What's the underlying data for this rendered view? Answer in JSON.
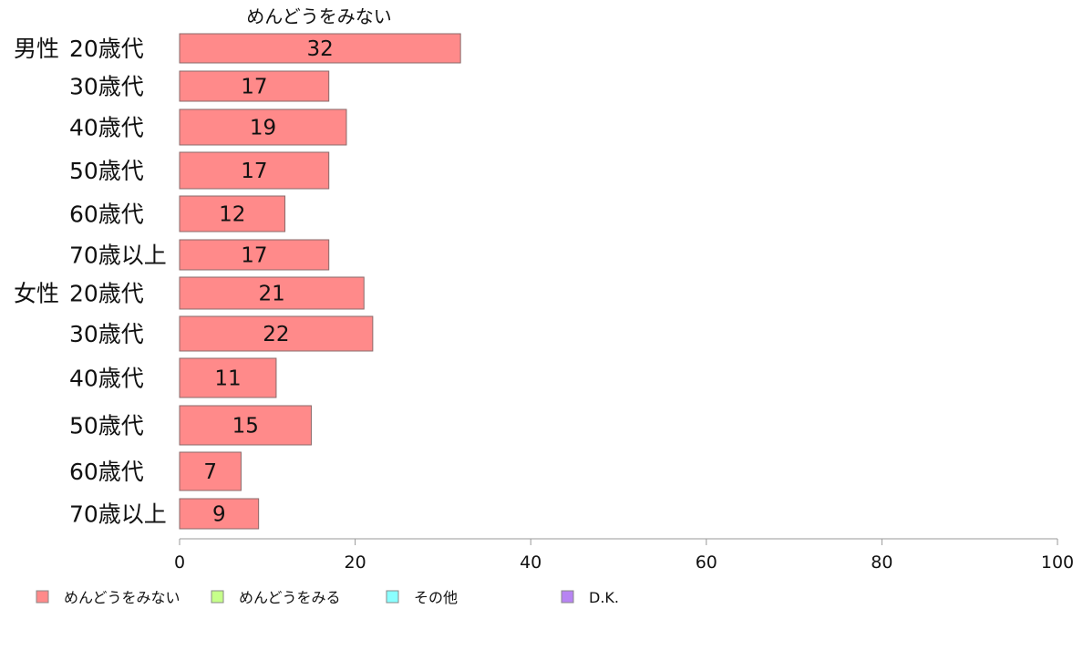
{
  "chart_data": {
    "type": "bar",
    "orientation": "horizontal",
    "series_title": "めんどうをみない",
    "groups": [
      {
        "name": "男性",
        "categories": [
          "20歳代",
          "30歳代",
          "40歳代",
          "50歳代",
          "60歳代",
          "70歳以上"
        ],
        "values": [
          32,
          17,
          19,
          17,
          12,
          17
        ]
      },
      {
        "name": "女性",
        "categories": [
          "20歳代",
          "30歳代",
          "40歳代",
          "50歳代",
          "60歳代",
          "70歳以上"
        ],
        "values": [
          21,
          22,
          11,
          15,
          7,
          9
        ]
      }
    ],
    "xlim": [
      0,
      100
    ],
    "xticks": [
      0,
      20,
      40,
      60,
      80,
      100
    ],
    "legend": [
      {
        "label": "めんどうをみない",
        "color": "#ff8a8a"
      },
      {
        "label": "めんどうをみる",
        "color": "#c6ff8a"
      },
      {
        "label": "その他",
        "color": "#8affff"
      },
      {
        "label": "D.K.",
        "color": "#b784f2"
      }
    ],
    "legend_position": "bottom",
    "grid": false
  }
}
